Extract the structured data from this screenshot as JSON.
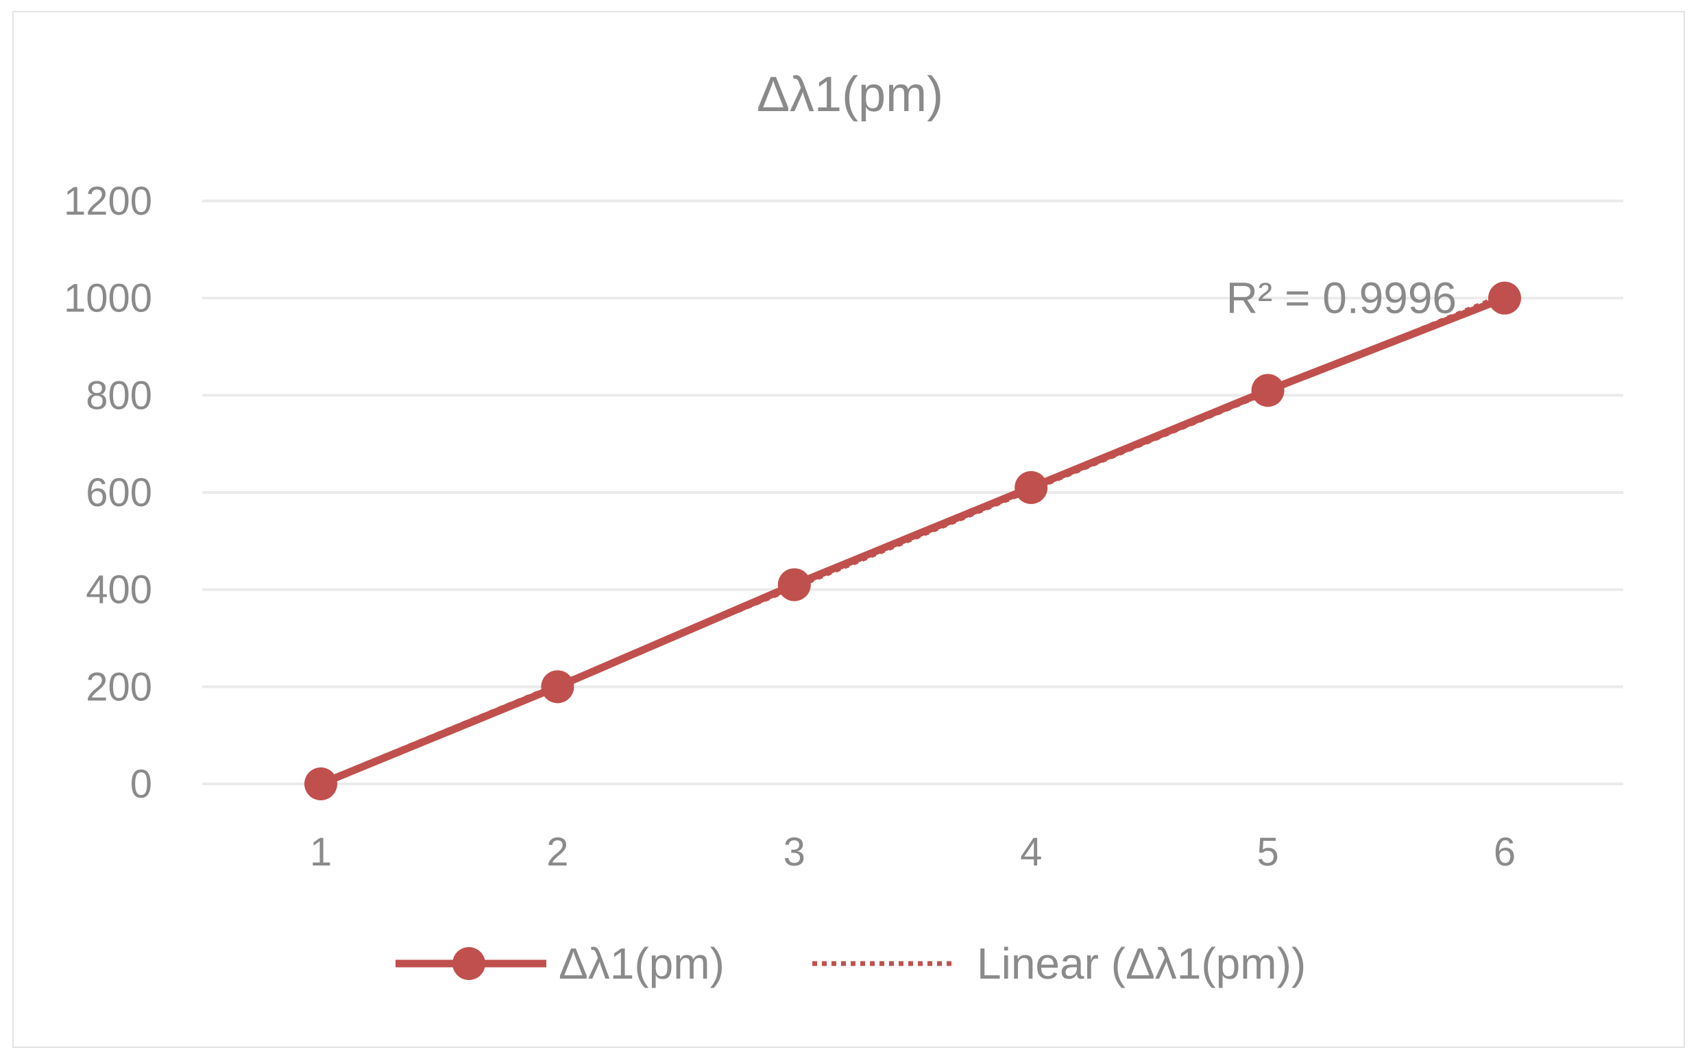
{
  "chart_data": {
    "type": "line",
    "title": "Δλ1(pm)",
    "categories": [
      "1",
      "2",
      "3",
      "4",
      "5",
      "6"
    ],
    "x": [
      1,
      2,
      3,
      4,
      5,
      6
    ],
    "series": [
      {
        "name": "Δλ1(pm)",
        "values": [
          0,
          200,
          410,
          610,
          810,
          1000
        ],
        "color": "#c0504d",
        "marker": "circle"
      }
    ],
    "trendline": {
      "name": "Linear (Δλ1(pm))",
      "type": "linear",
      "style": "dotted",
      "color": "#c0504d",
      "r_squared_label": "R² = 0.9996"
    },
    "yticks": [
      0,
      200,
      400,
      600,
      800,
      1000,
      1200
    ],
    "ylim": [
      0,
      1200
    ],
    "xlabel": "",
    "ylabel": "",
    "grid": true,
    "legend_position": "bottom"
  }
}
